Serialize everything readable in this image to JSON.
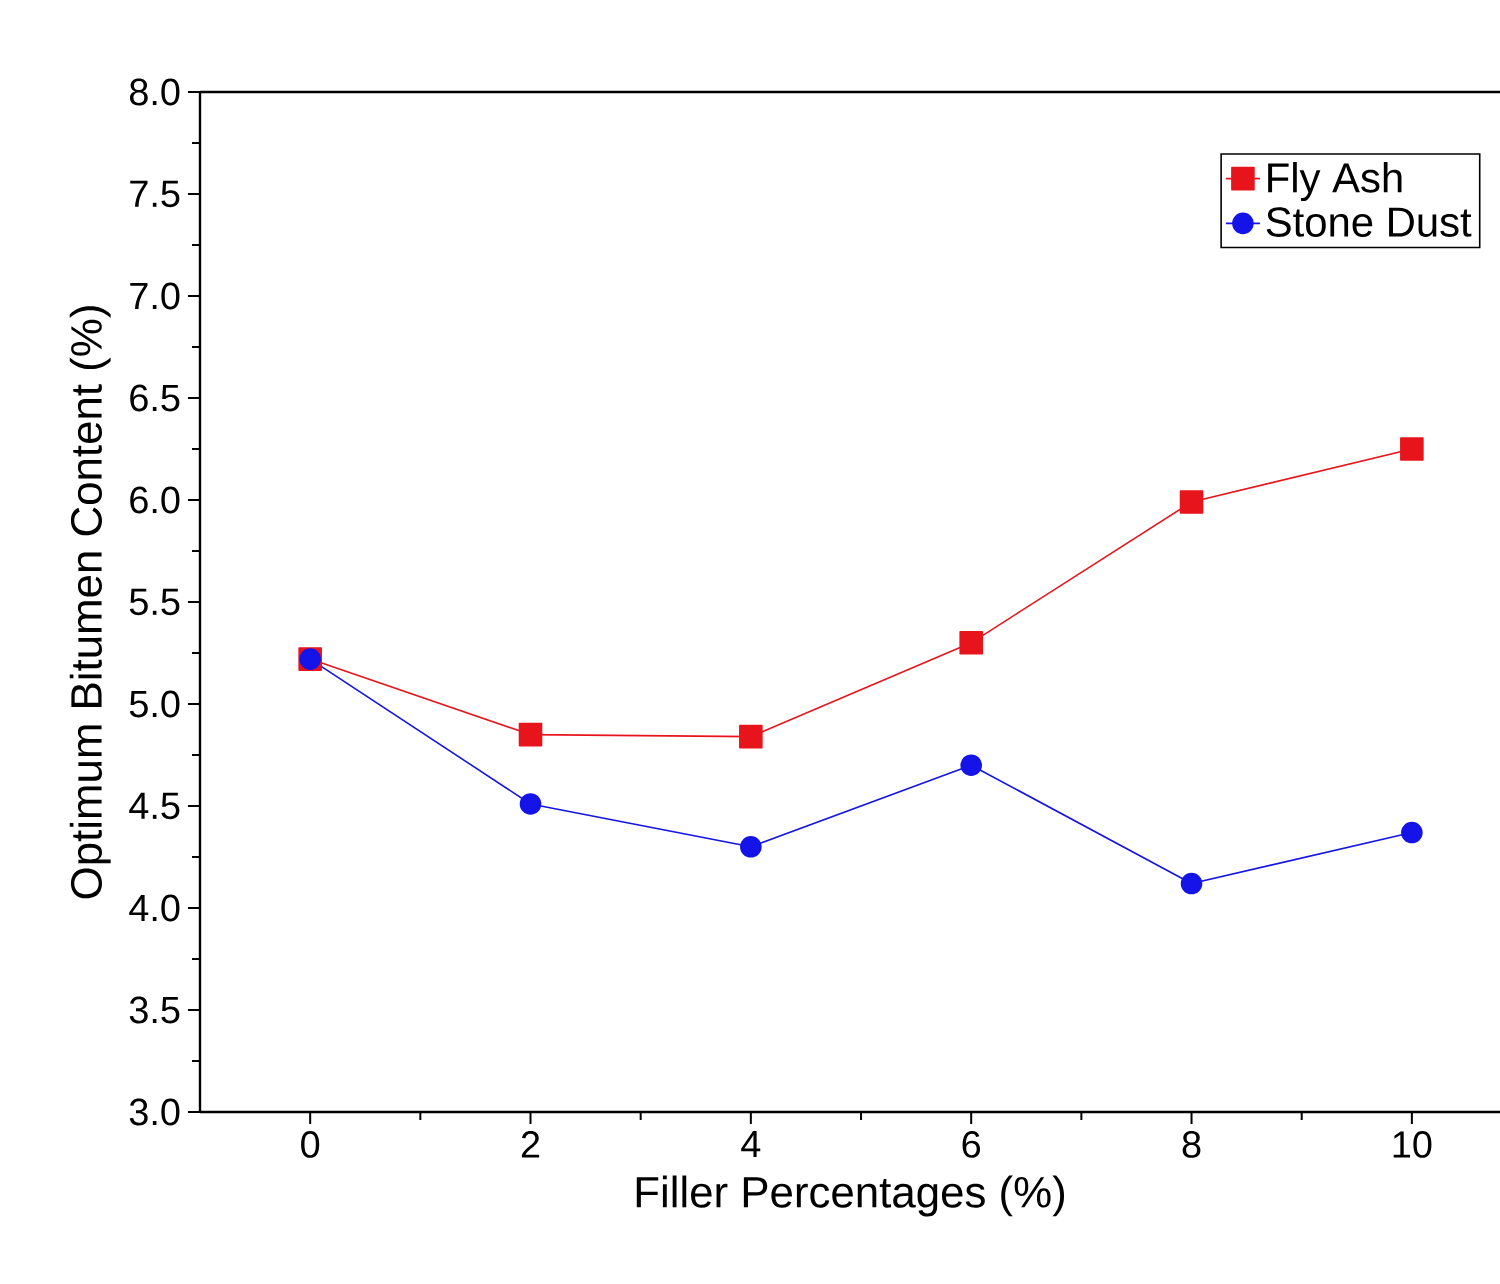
{
  "chart_data": {
    "type": "line",
    "xlabel": "Filler Percentages (%)",
    "ylabel": "Optimum Bitumen Content (%)",
    "x": [
      0,
      2,
      4,
      6,
      8,
      10
    ],
    "series": [
      {
        "name": "Fly Ash",
        "color": "#e8141c",
        "marker": "square",
        "values": [
          5.22,
          4.85,
          4.84,
          5.3,
          5.99,
          6.25
        ]
      },
      {
        "name": "Stone Dust",
        "color": "#1414e8",
        "marker": "circle",
        "values": [
          5.22,
          4.51,
          4.3,
          4.7,
          4.12,
          4.37
        ]
      }
    ],
    "xlim": [
      -1,
      10.8
    ],
    "xticks": [
      0,
      2,
      4,
      6,
      8,
      10
    ],
    "ylim": [
      3.0,
      8.0
    ],
    "yticks": [
      {
        "value": 3.0,
        "label": "3.0"
      },
      {
        "value": 3.5,
        "label": "3.5"
      },
      {
        "value": 4.0,
        "label": "4.0"
      },
      {
        "value": 4.5,
        "label": "4.5"
      },
      {
        "value": 5.0,
        "label": "5.0"
      },
      {
        "value": 5.5,
        "label": "5.5"
      },
      {
        "value": 6.0,
        "label": "6.0"
      },
      {
        "value": 6.5,
        "label": "6.5"
      },
      {
        "value": 7.0,
        "label": "7.0"
      },
      {
        "value": 7.5,
        "label": "7.5"
      },
      {
        "value": 8.0,
        "label": "8.0"
      }
    ],
    "legend": "top right",
    "grid": false,
    "line_style": "solid"
  }
}
